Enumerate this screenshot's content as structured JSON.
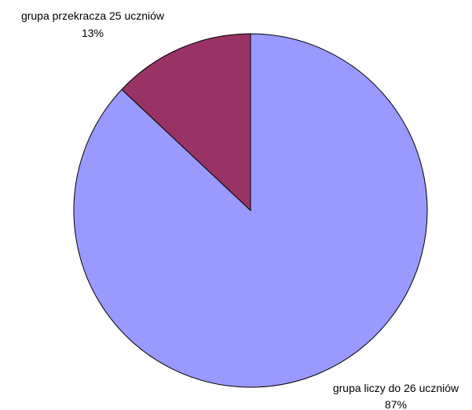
{
  "chart_data": {
    "type": "pie",
    "title": "",
    "legend": "none",
    "slices": [
      {
        "label": "grupa przekracza 25 uczniów",
        "value": 13,
        "percent_label": "13%",
        "color": "#993366"
      },
      {
        "label": "grupa liczy do 26 uczniów",
        "value": 87,
        "percent_label": "87%",
        "color": "#9999ff"
      }
    ]
  }
}
